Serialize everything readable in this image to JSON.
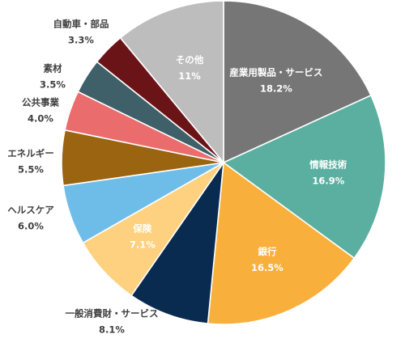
{
  "chart_data": {
    "type": "pie",
    "unit": "%",
    "slices": [
      {
        "name": "産業用製品・サービス",
        "value": 18.2,
        "label": "18.2%",
        "color": "#767676"
      },
      {
        "name": "情報技術",
        "value": 16.9,
        "label": "16.9%",
        "color": "#5bafa0"
      },
      {
        "name": "銀行",
        "value": 16.5,
        "label": "16.5%",
        "color": "#f9af3b"
      },
      {
        "name": "一般消費財・サービス",
        "value": 8.1,
        "label": "8.1%",
        "color": "#0a2b50"
      },
      {
        "name": "保険",
        "value": 7.1,
        "label": "7.1%",
        "color": "#fdd17f"
      },
      {
        "name": "ヘルスケア",
        "value": 6.0,
        "label": "6.0%",
        "color": "#6ebde9"
      },
      {
        "name": "エネルギー",
        "value": 5.5,
        "label": "5.5%",
        "color": "#9a6411"
      },
      {
        "name": "公共事業",
        "value": 4.0,
        "label": "4.0%",
        "color": "#ea6c6c"
      },
      {
        "name": "素材",
        "value": 3.5,
        "label": "3.5%",
        "color": "#3f6068"
      },
      {
        "name": "自動車・部品",
        "value": 3.3,
        "label": "3.3%",
        "color": "#6b1417"
      },
      {
        "name": "その他",
        "value": 11,
        "label": "11%",
        "color": "#bdbdbd"
      }
    ]
  }
}
